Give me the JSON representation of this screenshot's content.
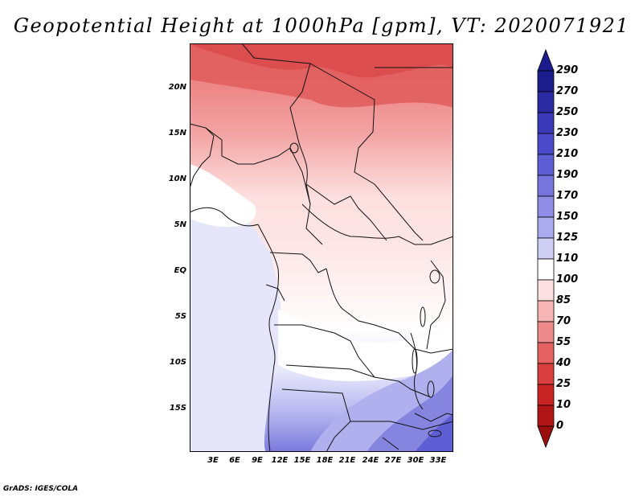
{
  "title": "Geopotential Height at 1000hPa [gpm], VT: 2020071921",
  "credit": "GrADS: IGES/COLA",
  "map": {
    "lat_labels": [
      "20N",
      "15N",
      "10N",
      "5N",
      "EQ",
      "5S",
      "10S",
      "15S"
    ],
    "lon_labels": [
      "3E",
      "6E",
      "9E",
      "12E",
      "15E",
      "18E",
      "21E",
      "24E",
      "27E",
      "30E",
      "33E"
    ]
  },
  "colorbar": {
    "labels": [
      "290",
      "270",
      "250",
      "230",
      "210",
      "190",
      "170",
      "150",
      "125",
      "110",
      "100",
      "85",
      "70",
      "55",
      "40",
      "25",
      "10",
      "0"
    ],
    "colors": [
      "#1c1d8c",
      "#2a2aa2",
      "#3a3ab8",
      "#4b4bc9",
      "#5e5ed5",
      "#7575dd",
      "#8e8ee6",
      "#aaaaee",
      "#cfcff6",
      "#ffffff",
      "#fde0e0",
      "#f7b5b5",
      "#ee8a8a",
      "#e46262",
      "#d93f3f",
      "#c82424",
      "#b01616",
      "#9a0e0e"
    ]
  }
}
